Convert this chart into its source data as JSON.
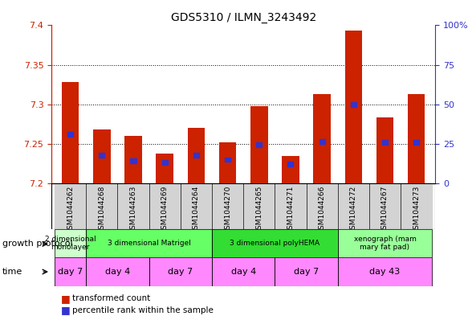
{
  "title": "GDS5310 / ILMN_3243492",
  "samples": [
    "GSM1044262",
    "GSM1044268",
    "GSM1044263",
    "GSM1044269",
    "GSM1044264",
    "GSM1044270",
    "GSM1044265",
    "GSM1044271",
    "GSM1044266",
    "GSM1044272",
    "GSM1044267",
    "GSM1044273"
  ],
  "transformed_count": [
    7.328,
    7.268,
    7.26,
    7.238,
    7.27,
    7.252,
    7.298,
    7.235,
    7.313,
    7.393,
    7.283,
    7.313
  ],
  "percentile_rank": [
    0.31,
    0.18,
    0.14,
    0.13,
    0.18,
    0.15,
    0.245,
    0.12,
    0.265,
    0.5,
    0.258,
    0.258
  ],
  "ymin": 7.2,
  "ymax": 7.4,
  "yticks_left": [
    7.2,
    7.25,
    7.3,
    7.35,
    7.4
  ],
  "yticks_right_vals": [
    0,
    25,
    50,
    75,
    100
  ],
  "yticks_right_labels": [
    "0",
    "25",
    "50",
    "75",
    "100%"
  ],
  "bar_color": "#cc2200",
  "percentile_color": "#3333cc",
  "left_axis_color": "#cc2200",
  "right_axis_color": "#3333cc",
  "bar_width": 0.55,
  "growth_protocol_groups": [
    {
      "label": "2 dimensional\nmonolayer",
      "start": 0,
      "end": 1,
      "color": "#ccffcc"
    },
    {
      "label": "3 dimensional Matrigel",
      "start": 1,
      "end": 5,
      "color": "#66ff66"
    },
    {
      "label": "3 dimensional polyHEMA",
      "start": 5,
      "end": 9,
      "color": "#33dd33"
    },
    {
      "label": "xenograph (mam\nmary fat pad)",
      "start": 9,
      "end": 12,
      "color": "#99ff99"
    }
  ],
  "time_groups": [
    {
      "label": "day 7",
      "start": 0,
      "end": 1,
      "color": "#ff88ff"
    },
    {
      "label": "day 4",
      "start": 1,
      "end": 3,
      "color": "#ff88ff"
    },
    {
      "label": "day 7",
      "start": 3,
      "end": 5,
      "color": "#ff88ff"
    },
    {
      "label": "day 4",
      "start": 5,
      "end": 7,
      "color": "#ff88ff"
    },
    {
      "label": "day 7",
      "start": 7,
      "end": 9,
      "color": "#ff88ff"
    },
    {
      "label": "day 43",
      "start": 9,
      "end": 12,
      "color": "#ff88ff"
    }
  ],
  "grid_yticks": [
    7.25,
    7.3,
    7.35
  ]
}
